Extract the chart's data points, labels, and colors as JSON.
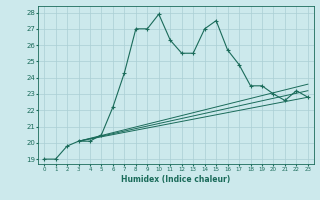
{
  "xlabel": "Humidex (Indice chaleur)",
  "background_color": "#cce9ec",
  "grid_color": "#aacfd4",
  "line_color": "#1a6b5a",
  "xlim": [
    -0.5,
    23.5
  ],
  "ylim": [
    18.7,
    28.4
  ],
  "xticks": [
    0,
    1,
    2,
    3,
    4,
    5,
    6,
    7,
    8,
    9,
    10,
    11,
    12,
    13,
    14,
    15,
    16,
    17,
    18,
    19,
    20,
    21,
    22,
    23
  ],
  "yticks": [
    19,
    20,
    21,
    22,
    23,
    24,
    25,
    26,
    27,
    28
  ],
  "line1_x": [
    0,
    1,
    2,
    3,
    4,
    5,
    6,
    7,
    8,
    9,
    10,
    11,
    12,
    13,
    14,
    15,
    16,
    17,
    18,
    19,
    20,
    21,
    22,
    23
  ],
  "line1_y": [
    19.0,
    19.0,
    19.8,
    20.1,
    20.1,
    20.5,
    22.2,
    24.3,
    27.0,
    27.0,
    27.9,
    26.3,
    25.5,
    25.5,
    27.0,
    27.5,
    25.7,
    24.8,
    23.5,
    23.5,
    23.0,
    22.6,
    23.2,
    22.8
  ],
  "line2_x": [
    3,
    23
  ],
  "line2_y": [
    20.1,
    22.8
  ],
  "line3_x": [
    3,
    23
  ],
  "line3_y": [
    20.1,
    23.2
  ],
  "line4_x": [
    3,
    23
  ],
  "line4_y": [
    20.1,
    23.6
  ]
}
